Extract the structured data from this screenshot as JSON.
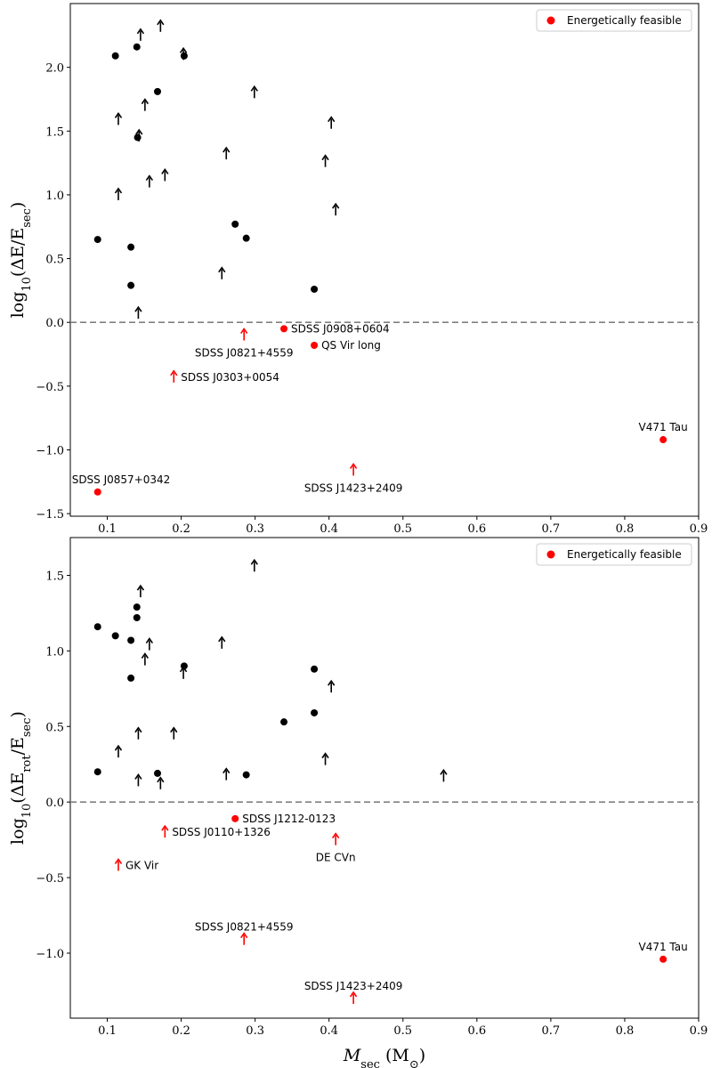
{
  "chart_data": [
    {
      "type": "scatter",
      "panel": "top",
      "ylabel": "log10(ΔE/E_sec)",
      "ylabel_main": "log",
      "ylabel_sub": "10",
      "ylabel_rest": "(ΔE/E",
      "ylabel_rest_sub": "sec",
      "ylabel_end": ")",
      "xlabel": "",
      "xlim": [
        0.05,
        0.9
      ],
      "ylim": [
        -1.52,
        2.5
      ],
      "xticks": [
        0.1,
        0.2,
        0.3,
        0.4,
        0.5,
        0.6,
        0.7,
        0.8,
        0.9
      ],
      "xtick_labels": [
        "0.1",
        "0.2",
        "0.3",
        "0.4",
        "0.5",
        "0.6",
        "0.7",
        "0.8",
        "0.9"
      ],
      "yticks": [
        -1.5,
        -1.0,
        -0.5,
        0.0,
        0.5,
        1.0,
        1.5,
        2.0
      ],
      "ytick_labels": [
        "−1.5",
        "−1.0",
        "−0.5",
        "0.0",
        "0.5",
        "1.0",
        "1.5",
        "2.0"
      ],
      "reference_line_y": 0,
      "legend": {
        "label": "Energetically feasible",
        "color": "#ff0000",
        "position": "top-right"
      },
      "colors": {
        "feasible": "#ff0000",
        "other": "#000000",
        "reference_line": "#808080"
      },
      "points": [
        {
          "x": 0.111,
          "y": 2.09,
          "marker": "dot",
          "feasible": false
        },
        {
          "x": 0.14,
          "y": 2.16,
          "marker": "dot",
          "feasible": false
        },
        {
          "x": 0.145,
          "y": 2.25,
          "marker": "arrow",
          "feasible": false
        },
        {
          "x": 0.172,
          "y": 2.32,
          "marker": "arrow",
          "feasible": false
        },
        {
          "x": 0.203,
          "y": 2.1,
          "marker": "arrow",
          "feasible": false
        },
        {
          "x": 0.204,
          "y": 2.09,
          "marker": "dot",
          "feasible": false
        },
        {
          "x": 0.168,
          "y": 1.81,
          "marker": "dot",
          "feasible": false
        },
        {
          "x": 0.115,
          "y": 1.59,
          "marker": "arrow",
          "feasible": false
        },
        {
          "x": 0.151,
          "y": 1.7,
          "marker": "arrow",
          "feasible": false
        },
        {
          "x": 0.141,
          "y": 1.45,
          "marker": "dot",
          "feasible": false
        },
        {
          "x": 0.143,
          "y": 1.46,
          "marker": "arrow",
          "feasible": false
        },
        {
          "x": 0.299,
          "y": 1.8,
          "marker": "arrow",
          "feasible": false
        },
        {
          "x": 0.403,
          "y": 1.56,
          "marker": "arrow",
          "feasible": false
        },
        {
          "x": 0.261,
          "y": 1.32,
          "marker": "arrow",
          "feasible": false
        },
        {
          "x": 0.395,
          "y": 1.26,
          "marker": "arrow",
          "feasible": false
        },
        {
          "x": 0.178,
          "y": 1.15,
          "marker": "arrow",
          "feasible": false
        },
        {
          "x": 0.157,
          "y": 1.1,
          "marker": "arrow",
          "feasible": false
        },
        {
          "x": 0.115,
          "y": 1.0,
          "marker": "arrow",
          "feasible": false
        },
        {
          "x": 0.409,
          "y": 0.88,
          "marker": "arrow",
          "feasible": false
        },
        {
          "x": 0.273,
          "y": 0.77,
          "marker": "dot",
          "feasible": false
        },
        {
          "x": 0.288,
          "y": 0.66,
          "marker": "dot",
          "feasible": false
        },
        {
          "x": 0.087,
          "y": 0.65,
          "marker": "dot",
          "feasible": false
        },
        {
          "x": 0.132,
          "y": 0.59,
          "marker": "dot",
          "feasible": false
        },
        {
          "x": 0.255,
          "y": 0.38,
          "marker": "arrow",
          "feasible": false
        },
        {
          "x": 0.132,
          "y": 0.29,
          "marker": "dot",
          "feasible": false
        },
        {
          "x": 0.38,
          "y": 0.26,
          "marker": "dot",
          "feasible": false
        },
        {
          "x": 0.142,
          "y": 0.07,
          "marker": "arrow",
          "feasible": false
        },
        {
          "x": 0.339,
          "y": -0.05,
          "marker": "dot",
          "feasible": true,
          "label": "SDSS J0908+0604",
          "label_pos": "right"
        },
        {
          "x": 0.285,
          "y": -0.1,
          "marker": "arrow",
          "feasible": true,
          "label": "SDSS J0821+4559",
          "label_pos": "below"
        },
        {
          "x": 0.38,
          "y": -0.18,
          "marker": "dot",
          "feasible": true,
          "label": "QS Vir long",
          "label_pos": "right"
        },
        {
          "x": 0.19,
          "y": -0.43,
          "marker": "arrow",
          "feasible": true,
          "label": "SDSS J0303+0054",
          "label_pos": "right"
        },
        {
          "x": 0.852,
          "y": -0.92,
          "marker": "dot",
          "feasible": true,
          "label": "V471 Tau",
          "label_pos": "above"
        },
        {
          "x": 0.433,
          "y": -1.16,
          "marker": "arrow",
          "feasible": true,
          "label": "SDSS J1423+2409",
          "label_pos": "below"
        },
        {
          "x": 0.087,
          "y": -1.33,
          "marker": "dot",
          "feasible": true,
          "label": "SDSS J0857+0342",
          "label_pos": "above"
        }
      ]
    },
    {
      "type": "scatter",
      "panel": "bottom",
      "ylabel": "log10(ΔE_rot/E_sec)",
      "ylabel_main": "log",
      "ylabel_sub": "10",
      "ylabel_rest": "(ΔE",
      "ylabel_rest_sub": "rot",
      "ylabel_mid": "/E",
      "ylabel_mid_sub": "sec",
      "ylabel_end": ")",
      "xlabel": "M_sec (M_⊙)",
      "xlabel_main": "M",
      "xlabel_sub": "sec",
      "xlabel_unit_open": " (M",
      "xlabel_unit_sub": "⊙",
      "xlabel_unit_close": ")",
      "xlim": [
        0.05,
        0.9
      ],
      "ylim": [
        -1.43,
        1.75
      ],
      "xticks": [
        0.1,
        0.2,
        0.3,
        0.4,
        0.5,
        0.6,
        0.7,
        0.8,
        0.9
      ],
      "xtick_labels": [
        "0.1",
        "0.2",
        "0.3",
        "0.4",
        "0.5",
        "0.6",
        "0.7",
        "0.8",
        "0.9"
      ],
      "yticks": [
        -1.0,
        -0.5,
        0.0,
        0.5,
        1.0,
        1.5
      ],
      "ytick_labels": [
        "−1.0",
        "−0.5",
        "0.0",
        "0.5",
        "1.0",
        "1.5"
      ],
      "reference_line_y": 0,
      "legend": {
        "label": "Energetically feasible",
        "color": "#ff0000",
        "position": "top-right"
      },
      "colors": {
        "feasible": "#ff0000",
        "other": "#000000",
        "reference_line": "#808080"
      },
      "points": [
        {
          "x": 0.299,
          "y": 1.56,
          "marker": "arrow",
          "feasible": false
        },
        {
          "x": 0.145,
          "y": 1.39,
          "marker": "arrow",
          "feasible": false
        },
        {
          "x": 0.14,
          "y": 1.29,
          "marker": "dot",
          "feasible": false
        },
        {
          "x": 0.14,
          "y": 1.22,
          "marker": "dot",
          "feasible": false
        },
        {
          "x": 0.087,
          "y": 1.16,
          "marker": "dot",
          "feasible": false
        },
        {
          "x": 0.111,
          "y": 1.1,
          "marker": "dot",
          "feasible": false
        },
        {
          "x": 0.132,
          "y": 1.07,
          "marker": "dot",
          "feasible": false
        },
        {
          "x": 0.157,
          "y": 1.04,
          "marker": "arrow",
          "feasible": false
        },
        {
          "x": 0.255,
          "y": 1.05,
          "marker": "arrow",
          "feasible": false
        },
        {
          "x": 0.151,
          "y": 0.94,
          "marker": "arrow",
          "feasible": false
        },
        {
          "x": 0.204,
          "y": 0.9,
          "marker": "dot",
          "feasible": false
        },
        {
          "x": 0.203,
          "y": 0.85,
          "marker": "arrow",
          "feasible": false
        },
        {
          "x": 0.38,
          "y": 0.88,
          "marker": "dot",
          "feasible": false
        },
        {
          "x": 0.132,
          "y": 0.82,
          "marker": "dot",
          "feasible": false
        },
        {
          "x": 0.403,
          "y": 0.76,
          "marker": "arrow",
          "feasible": false
        },
        {
          "x": 0.38,
          "y": 0.59,
          "marker": "dot",
          "feasible": false
        },
        {
          "x": 0.339,
          "y": 0.53,
          "marker": "dot",
          "feasible": false
        },
        {
          "x": 0.142,
          "y": 0.45,
          "marker": "arrow",
          "feasible": false
        },
        {
          "x": 0.19,
          "y": 0.45,
          "marker": "arrow",
          "feasible": false
        },
        {
          "x": 0.115,
          "y": 0.33,
          "marker": "arrow",
          "feasible": false
        },
        {
          "x": 0.395,
          "y": 0.28,
          "marker": "arrow",
          "feasible": false
        },
        {
          "x": 0.087,
          "y": 0.2,
          "marker": "dot",
          "feasible": false
        },
        {
          "x": 0.168,
          "y": 0.19,
          "marker": "dot",
          "feasible": false
        },
        {
          "x": 0.261,
          "y": 0.18,
          "marker": "arrow",
          "feasible": false
        },
        {
          "x": 0.288,
          "y": 0.18,
          "marker": "dot",
          "feasible": false
        },
        {
          "x": 0.555,
          "y": 0.17,
          "marker": "arrow",
          "feasible": false
        },
        {
          "x": 0.142,
          "y": 0.14,
          "marker": "arrow",
          "feasible": false
        },
        {
          "x": 0.172,
          "y": 0.12,
          "marker": "arrow",
          "feasible": false
        },
        {
          "x": 0.273,
          "y": -0.11,
          "marker": "dot",
          "feasible": true,
          "label": "SDSS J1212-0123",
          "label_pos": "right"
        },
        {
          "x": 0.178,
          "y": -0.2,
          "marker": "arrow",
          "feasible": true,
          "label": "SDSS J0110+1326",
          "label_pos": "right"
        },
        {
          "x": 0.409,
          "y": -0.25,
          "marker": "arrow",
          "feasible": true,
          "label": "DE CVn",
          "label_pos": "below"
        },
        {
          "x": 0.115,
          "y": -0.42,
          "marker": "arrow",
          "feasible": true,
          "label": "GK Vir",
          "label_pos": "right"
        },
        {
          "x": 0.285,
          "y": -0.91,
          "marker": "arrow",
          "feasible": true,
          "label": "SDSS J0821+4559",
          "label_pos": "above"
        },
        {
          "x": 0.852,
          "y": -1.04,
          "marker": "dot",
          "feasible": true,
          "label": "V471 Tau",
          "label_pos": "above"
        },
        {
          "x": 0.433,
          "y": -1.3,
          "marker": "arrow",
          "feasible": true,
          "label": "SDSS J1423+2409",
          "label_pos": "above"
        }
      ]
    }
  ]
}
